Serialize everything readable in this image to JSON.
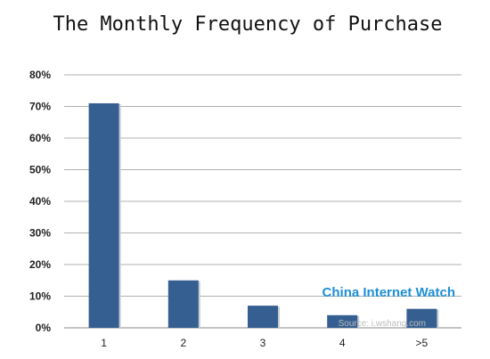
{
  "chart_data": {
    "type": "bar",
    "title": "The Monthly Frequency of Purchase",
    "categories": [
      "1",
      "2",
      "3",
      "4",
      ">5"
    ],
    "values": [
      71,
      15,
      7,
      4,
      6
    ],
    "unit": "%",
    "ylim": [
      0,
      80
    ],
    "y_ticks": [
      "0%",
      "10%",
      "20%",
      "30%",
      "40%",
      "50%",
      "60%",
      "70%",
      "80%"
    ],
    "grid": true,
    "bar_color": "#365f91"
  },
  "watermark": {
    "brand": "China Internet Watch",
    "source": "Source: i.wshang.com"
  }
}
